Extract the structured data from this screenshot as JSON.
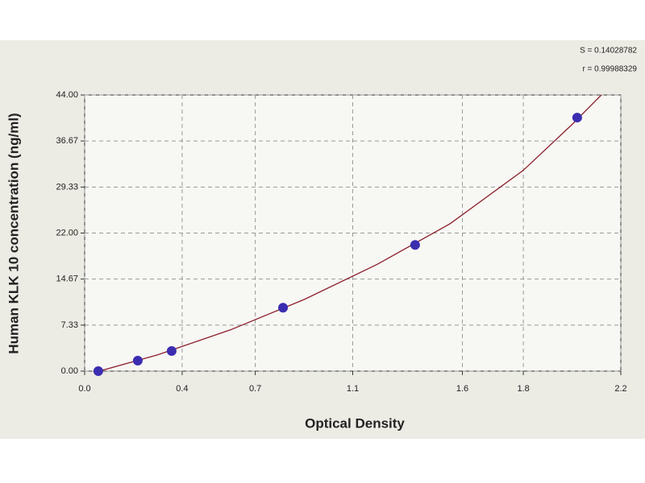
{
  "chart_data": {
    "type": "scatter",
    "x_label": "Optical Density",
    "y_label": "Human KLK 10 concentration (ng/ml)",
    "annotations": [
      "S = 0.14028782",
      "r = 0.99988329"
    ],
    "x": [
      0.056,
      0.218,
      0.357,
      0.814,
      1.356,
      2.021
    ],
    "values": [
      0,
      1.67,
      3.2,
      10.1,
      20.1,
      40.4
    ],
    "color": "#3b2db0",
    "curve": {
      "x": [
        0.06,
        0.3,
        0.6,
        0.9,
        1.2,
        1.5,
        1.8,
        2.0,
        2.12
      ],
      "values": [
        0,
        2.6,
        6.6,
        11.4,
        17,
        23.5,
        32,
        39.3,
        44
      ],
      "color": "#8b1f2a"
    },
    "xlim": [
      0,
      2.2
    ],
    "xticks": [
      {
        "value": 0,
        "label": "0.0"
      },
      0.4,
      0.7,
      1.1,
      {
        "value": 1.55,
        "label": "1.6"
      },
      1.8,
      2.2
    ],
    "ylim": [
      0,
      44
    ],
    "yticks": [
      {
        "value": 0,
        "label": "0.00"
      },
      7.33,
      14.67,
      {
        "value": 22,
        "label": "22.00"
      },
      29.33,
      36.67,
      {
        "value": 44,
        "label": "44.00"
      }
    ],
    "grid": true
  }
}
